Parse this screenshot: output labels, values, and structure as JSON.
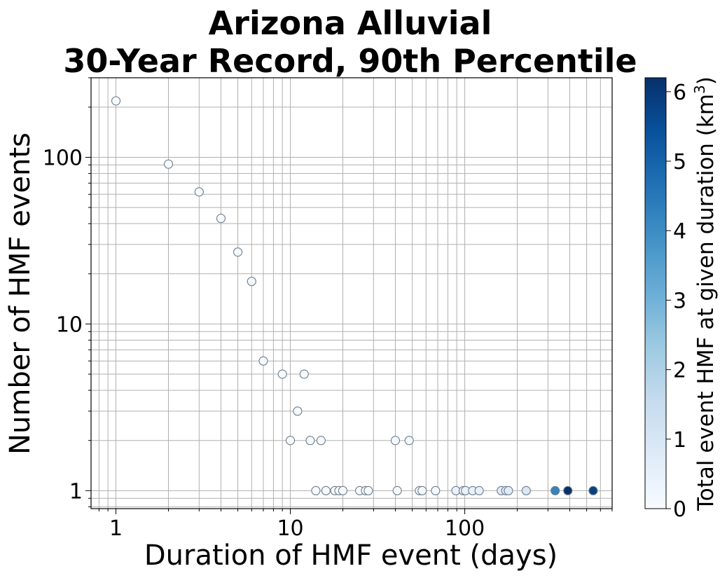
{
  "chart_data": {
    "type": "scatter",
    "title_line1": "Arizona Alluvial",
    "title_line2": "30-Year Record, 90th Percentile",
    "xlabel": "Duration of HMF event (days)",
    "ylabel": "Number of HMF events",
    "x_scale": "log",
    "y_scale": "log",
    "xlim": [
      0.72,
      700
    ],
    "ylim": [
      0.78,
      300
    ],
    "x_ticks": [
      {
        "value": 1,
        "label": "1"
      },
      {
        "value": 10,
        "label": "10"
      },
      {
        "value": 100,
        "label": "100"
      }
    ],
    "y_ticks": [
      {
        "value": 1,
        "label": "1"
      },
      {
        "value": 10,
        "label": "10"
      },
      {
        "value": 100,
        "label": "100"
      }
    ],
    "grid": true,
    "colorbar": {
      "label_main": "Total event HMF at given duration (km",
      "label_sup": "3",
      "label_close": ")",
      "min": 0,
      "max": 6.2,
      "ticks": [
        {
          "value": 0,
          "label": "0"
        },
        {
          "value": 1,
          "label": "1"
        },
        {
          "value": 2,
          "label": "2"
        },
        {
          "value": 3,
          "label": "3"
        },
        {
          "value": 4,
          "label": "4"
        },
        {
          "value": 5,
          "label": "5"
        },
        {
          "value": 6,
          "label": "6"
        }
      ],
      "colormap": "Blues",
      "colors": [
        "#f7fbff",
        "#deebf7",
        "#c6dbef",
        "#9ecae1",
        "#6baed6",
        "#4292c6",
        "#2171b5",
        "#08519c",
        "#08306b"
      ]
    },
    "points": [
      {
        "x": 1,
        "y": 218,
        "c": 0.05
      },
      {
        "x": 2,
        "y": 91,
        "c": 0.05
      },
      {
        "x": 3,
        "y": 62,
        "c": 0.05
      },
      {
        "x": 4,
        "y": 43,
        "c": 0.05
      },
      {
        "x": 5,
        "y": 27,
        "c": 0.05
      },
      {
        "x": 6,
        "y": 18,
        "c": 0.05
      },
      {
        "x": 7,
        "y": 6,
        "c": 0.05
      },
      {
        "x": 9,
        "y": 5,
        "c": 0.05
      },
      {
        "x": 10,
        "y": 2,
        "c": 0.05
      },
      {
        "x": 11,
        "y": 3,
        "c": 0.05
      },
      {
        "x": 12,
        "y": 5,
        "c": 0.05
      },
      {
        "x": 13,
        "y": 2,
        "c": 0.05
      },
      {
        "x": 14,
        "y": 1,
        "c": 0.05
      },
      {
        "x": 15,
        "y": 2,
        "c": 0.05
      },
      {
        "x": 16,
        "y": 1,
        "c": 0.05
      },
      {
        "x": 18,
        "y": 1,
        "c": 0.05
      },
      {
        "x": 19,
        "y": 1,
        "c": 0.05
      },
      {
        "x": 20,
        "y": 1,
        "c": 0.05
      },
      {
        "x": 25,
        "y": 1,
        "c": 0.05
      },
      {
        "x": 27,
        "y": 1,
        "c": 0.05
      },
      {
        "x": 28,
        "y": 1,
        "c": 0.05
      },
      {
        "x": 40,
        "y": 2,
        "c": 0.1
      },
      {
        "x": 41,
        "y": 1,
        "c": 0.1
      },
      {
        "x": 48,
        "y": 2,
        "c": 0.1
      },
      {
        "x": 55,
        "y": 1,
        "c": 0.1
      },
      {
        "x": 57,
        "y": 1,
        "c": 0.1
      },
      {
        "x": 68,
        "y": 1,
        "c": 0.15
      },
      {
        "x": 89,
        "y": 1,
        "c": 0.4
      },
      {
        "x": 98,
        "y": 1,
        "c": 0.45
      },
      {
        "x": 101,
        "y": 1,
        "c": 0.45
      },
      {
        "x": 111,
        "y": 1,
        "c": 0.5
      },
      {
        "x": 121,
        "y": 1,
        "c": 0.5
      },
      {
        "x": 162,
        "y": 1,
        "c": 0.7
      },
      {
        "x": 172,
        "y": 1,
        "c": 0.7
      },
      {
        "x": 178,
        "y": 1,
        "c": 0.7
      },
      {
        "x": 225,
        "y": 1,
        "c": 0.9
      },
      {
        "x": 330,
        "y": 1,
        "c": 4.2
      },
      {
        "x": 390,
        "y": 1,
        "c": 6.2
      },
      {
        "x": 545,
        "y": 1,
        "c": 5.8
      }
    ]
  }
}
